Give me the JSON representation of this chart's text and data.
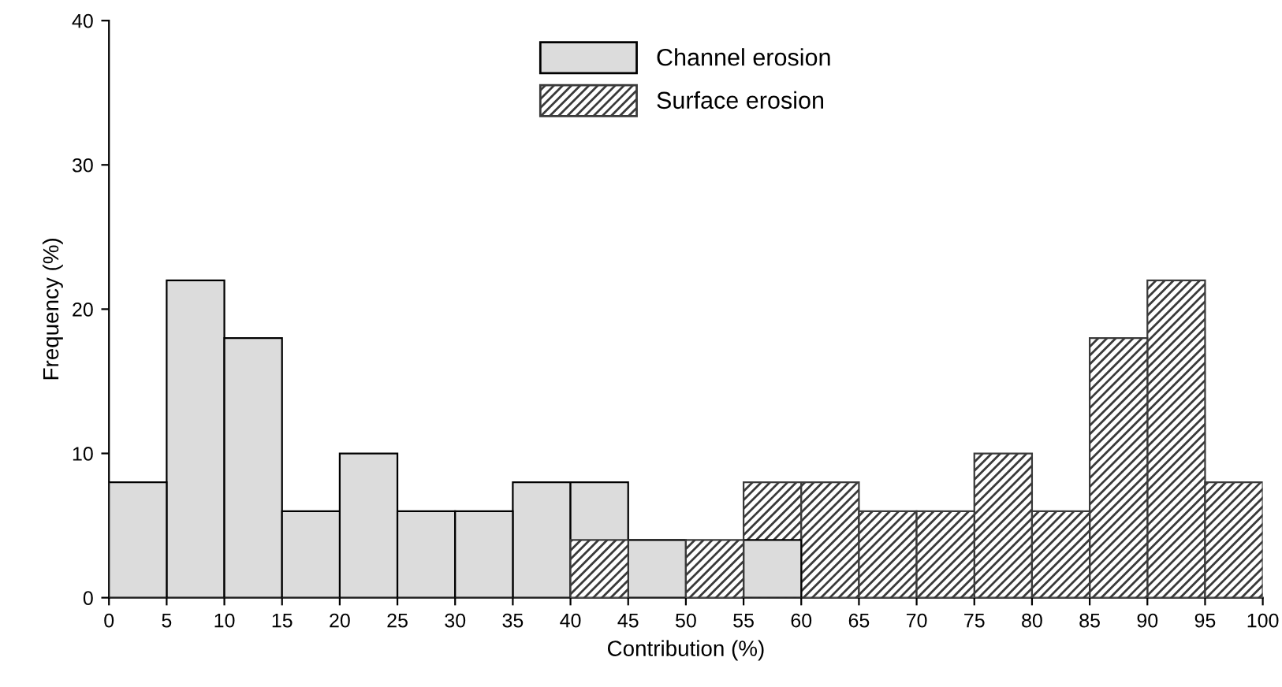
{
  "chart_data": {
    "type": "histogram",
    "xlabel": "Contribution (%)",
    "ylabel": "Frequency (%)",
    "bins": [
      0,
      5,
      10,
      15,
      20,
      25,
      30,
      35,
      40,
      45,
      50,
      55,
      60,
      65,
      70,
      75,
      80,
      85,
      90,
      95,
      100
    ],
    "series": [
      {
        "name": "Channel erosion",
        "color": "#dcdcdc",
        "values": [
          8,
          22,
          18,
          6,
          10,
          6,
          6,
          8,
          8,
          4,
          null,
          4,
          null,
          null,
          null,
          null,
          null,
          null,
          null,
          null
        ]
      },
      {
        "name": "Surface erosion",
        "color": "#3a3a3a",
        "values": [
          null,
          null,
          null,
          null,
          null,
          null,
          null,
          null,
          4,
          null,
          4,
          8,
          8,
          6,
          6,
          10,
          6,
          18,
          22,
          8
        ]
      }
    ],
    "xlim": [
      0,
      100
    ],
    "xticks": [
      0,
      5,
      10,
      15,
      20,
      25,
      30,
      35,
      40,
      45,
      50,
      55,
      60,
      65,
      70,
      75,
      80,
      85,
      90,
      95,
      100
    ],
    "ylim": [
      0,
      40
    ],
    "yticks": [
      0,
      10,
      20,
      30,
      40
    ],
    "legend": "top",
    "grid": false
  }
}
